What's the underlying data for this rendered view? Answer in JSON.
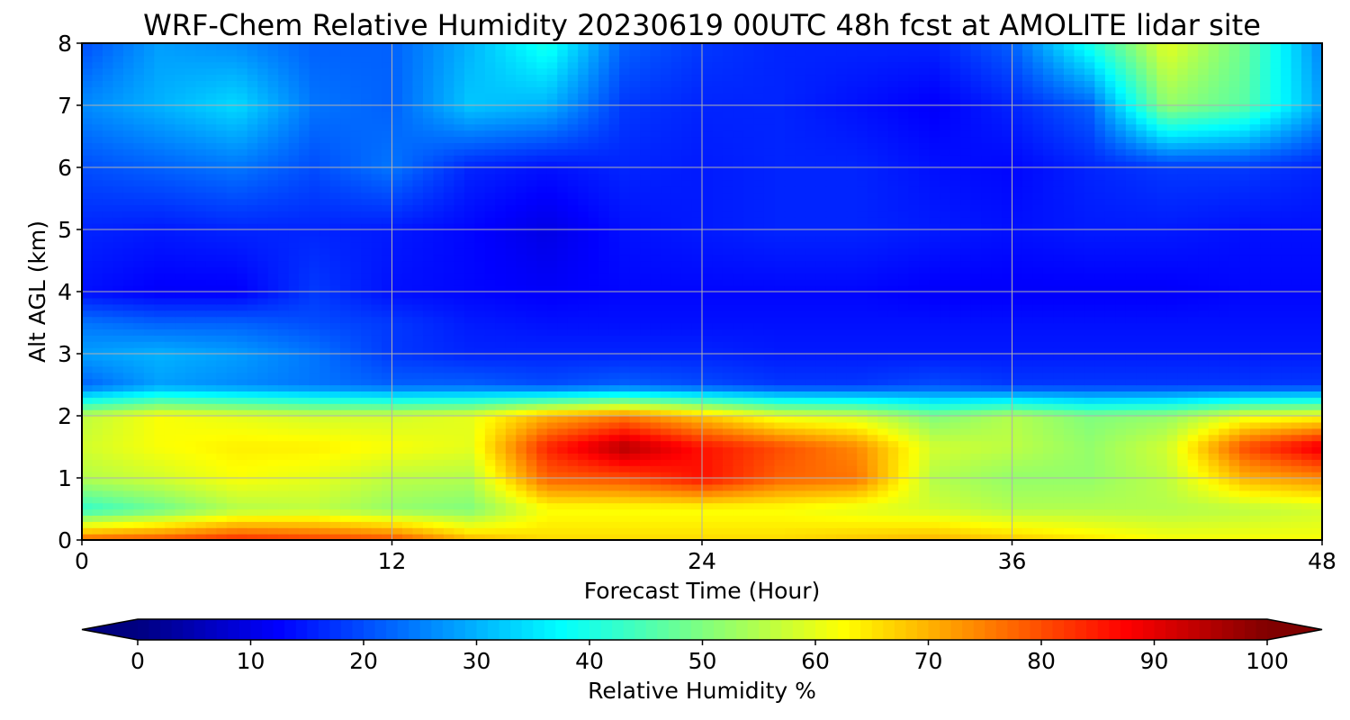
{
  "chart_data": {
    "type": "heatmap",
    "title": "WRF-Chem Relative Humidity 20230619 00UTC 48h fcst at AMOLITE lidar site",
    "xlabel": "Forecast Time (Hour)",
    "ylabel": "Alt AGL (km)",
    "xlim": [
      0,
      48
    ],
    "ylim": [
      0,
      8
    ],
    "x_ticks": [
      0,
      12,
      24,
      36,
      48
    ],
    "y_ticks": [
      0,
      1,
      2,
      3,
      4,
      5,
      6,
      7,
      8
    ],
    "grid": true,
    "colormap": "jet",
    "colorbar": {
      "label": "Relative Humidity %",
      "range": [
        0,
        100
      ],
      "ticks": [
        0,
        10,
        20,
        30,
        40,
        50,
        60,
        70,
        80,
        90,
        100
      ],
      "extend": "both",
      "orientation": "horizontal"
    },
    "x": [
      0,
      3,
      6,
      9,
      12,
      15,
      18,
      21,
      24,
      27,
      30,
      33,
      36,
      39,
      42,
      45,
      48
    ],
    "y": [
      0,
      0.5,
      1,
      1.5,
      2,
      2.5,
      3,
      3.5,
      4,
      5,
      6,
      7,
      8
    ],
    "z": [
      [
        78,
        80,
        84,
        82,
        80,
        70,
        66,
        66,
        66,
        66,
        68,
        70,
        68,
        65,
        62,
        62,
        62
      ],
      [
        42,
        48,
        55,
        56,
        52,
        50,
        62,
        62,
        62,
        62,
        60,
        58,
        55,
        55,
        55,
        56,
        58
      ],
      [
        55,
        58,
        62,
        60,
        56,
        55,
        78,
        80,
        86,
        78,
        76,
        55,
        52,
        52,
        56,
        70,
        74
      ],
      [
        58,
        62,
        64,
        64,
        62,
        60,
        84,
        95,
        86,
        80,
        74,
        58,
        56,
        52,
        58,
        80,
        90
      ],
      [
        56,
        62,
        60,
        58,
        58,
        60,
        70,
        75,
        68,
        60,
        58,
        50,
        55,
        50,
        52,
        60,
        62
      ],
      [
        22,
        28,
        26,
        24,
        22,
        22,
        20,
        22,
        20,
        18,
        18,
        20,
        18,
        18,
        18,
        18,
        18
      ],
      [
        28,
        30,
        28,
        24,
        18,
        16,
        16,
        16,
        16,
        15,
        15,
        15,
        15,
        15,
        15,
        15,
        15
      ],
      [
        24,
        22,
        22,
        20,
        18,
        15,
        14,
        14,
        14,
        14,
        14,
        14,
        14,
        14,
        14,
        14,
        14
      ],
      [
        14,
        12,
        12,
        18,
        14,
        13,
        12,
        13,
        13,
        13,
        13,
        12,
        12,
        12,
        12,
        13,
        13
      ],
      [
        16,
        15,
        16,
        16,
        15,
        13,
        10,
        14,
        15,
        16,
        16,
        15,
        14,
        15,
        15,
        14,
        14
      ],
      [
        20,
        22,
        24,
        20,
        24,
        16,
        14,
        16,
        15,
        16,
        16,
        14,
        13,
        16,
        18,
        18,
        16
      ],
      [
        26,
        30,
        34,
        24,
        22,
        32,
        30,
        18,
        16,
        16,
        14,
        12,
        16,
        22,
        52,
        46,
        28
      ],
      [
        20,
        28,
        26,
        22,
        22,
        30,
        40,
        22,
        18,
        16,
        16,
        16,
        22,
        40,
        60,
        48,
        25
      ]
    ]
  }
}
